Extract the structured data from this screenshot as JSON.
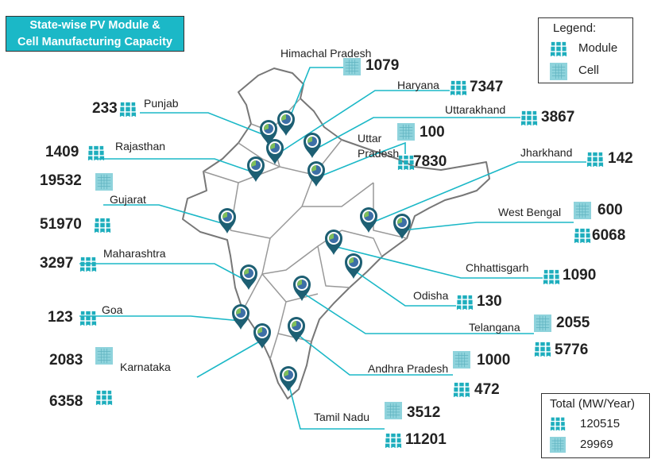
{
  "title": {
    "line1": "State-wise PV Module &",
    "line2": "Cell Manufacturing Capacity"
  },
  "legend": {
    "heading": "Legend:",
    "module_label": "Module",
    "cell_label": "Cell",
    "module_icon": "solar-module-icon",
    "cell_icon": "solar-cell-icon"
  },
  "totals": {
    "heading": "Total (MW/Year)",
    "module": "120515",
    "cell": "29969"
  },
  "colors": {
    "accent": "#1bb8c7",
    "line": "#1bb8c7",
    "pin": "#1d5f73",
    "border": "#777777"
  },
  "states": [
    {
      "name": "Himachal Pradesh",
      "cell": "1079"
    },
    {
      "name": "Haryana",
      "module": "7347"
    },
    {
      "name": "Punjab",
      "module": "233"
    },
    {
      "name": "Uttarakhand",
      "module": "3867"
    },
    {
      "name": "Uttar\nPradesh",
      "cell": "100",
      "module": "7830"
    },
    {
      "name": "Rajasthan",
      "module": "1409"
    },
    {
      "name": "Jharkhand",
      "module": "142"
    },
    {
      "name": "Gujarat",
      "cell": "19532",
      "module": "51970"
    },
    {
      "name": "West Bengal",
      "cell": "600",
      "module": "6068"
    },
    {
      "name": "Maharashtra",
      "module": "3297"
    },
    {
      "name": "Chhattisgarh",
      "module": "1090"
    },
    {
      "name": "Odisha",
      "module": "130"
    },
    {
      "name": "Goa",
      "module": "123"
    },
    {
      "name": "Telangana",
      "cell": "2055",
      "module": "5776"
    },
    {
      "name": "Karnataka",
      "cell": "2083",
      "module": "6358"
    },
    {
      "name": "Andhra Pradesh",
      "cell": "1000",
      "module": "472"
    },
    {
      "name": "Tamil Nadu",
      "cell": "3512",
      "module": "11201"
    }
  ]
}
